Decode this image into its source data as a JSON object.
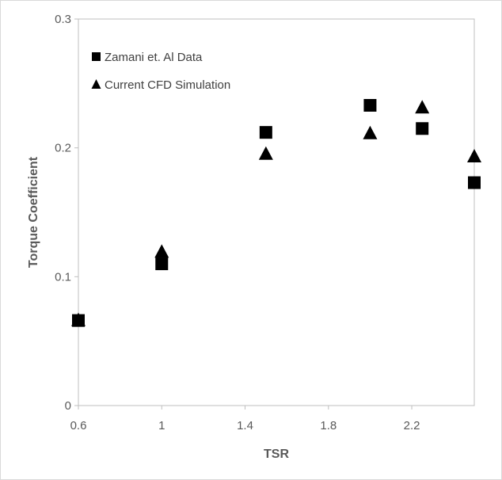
{
  "chart_data": {
    "type": "scatter",
    "xlabel": "TSR",
    "ylabel": "Torque Coefficient",
    "xlim": [
      0.6,
      2.5
    ],
    "ylim": [
      0,
      0.3
    ],
    "x_ticks": [
      "0.6",
      "1",
      "1.4",
      "1.8",
      "2.2"
    ],
    "x_tick_values": [
      0.6,
      1.0,
      1.4,
      1.8,
      2.2
    ],
    "y_ticks": [
      "0",
      "0.1",
      "0.2",
      "0.3"
    ],
    "y_tick_values": [
      0,
      0.1,
      0.2,
      0.3
    ],
    "grid": false,
    "legend_position": "top-left",
    "series": [
      {
        "name": "Zamani et. Al Data",
        "marker": "square",
        "color": "#000000",
        "points": [
          {
            "x": 0.6,
            "y": 0.066
          },
          {
            "x": 1.0,
            "y": 0.11
          },
          {
            "x": 1.5,
            "y": 0.212
          },
          {
            "x": 2.0,
            "y": 0.233
          },
          {
            "x": 2.25,
            "y": 0.215
          },
          {
            "x": 2.5,
            "y": 0.173
          }
        ]
      },
      {
        "name": "Current CFD Simulation",
        "marker": "triangle",
        "color": "#000000",
        "points": [
          {
            "x": 0.6,
            "y": 0.066
          },
          {
            "x": 1.0,
            "y": 0.119
          },
          {
            "x": 1.5,
            "y": 0.195
          },
          {
            "x": 2.0,
            "y": 0.211
          },
          {
            "x": 2.25,
            "y": 0.231
          },
          {
            "x": 2.5,
            "y": 0.193
          }
        ]
      }
    ]
  }
}
